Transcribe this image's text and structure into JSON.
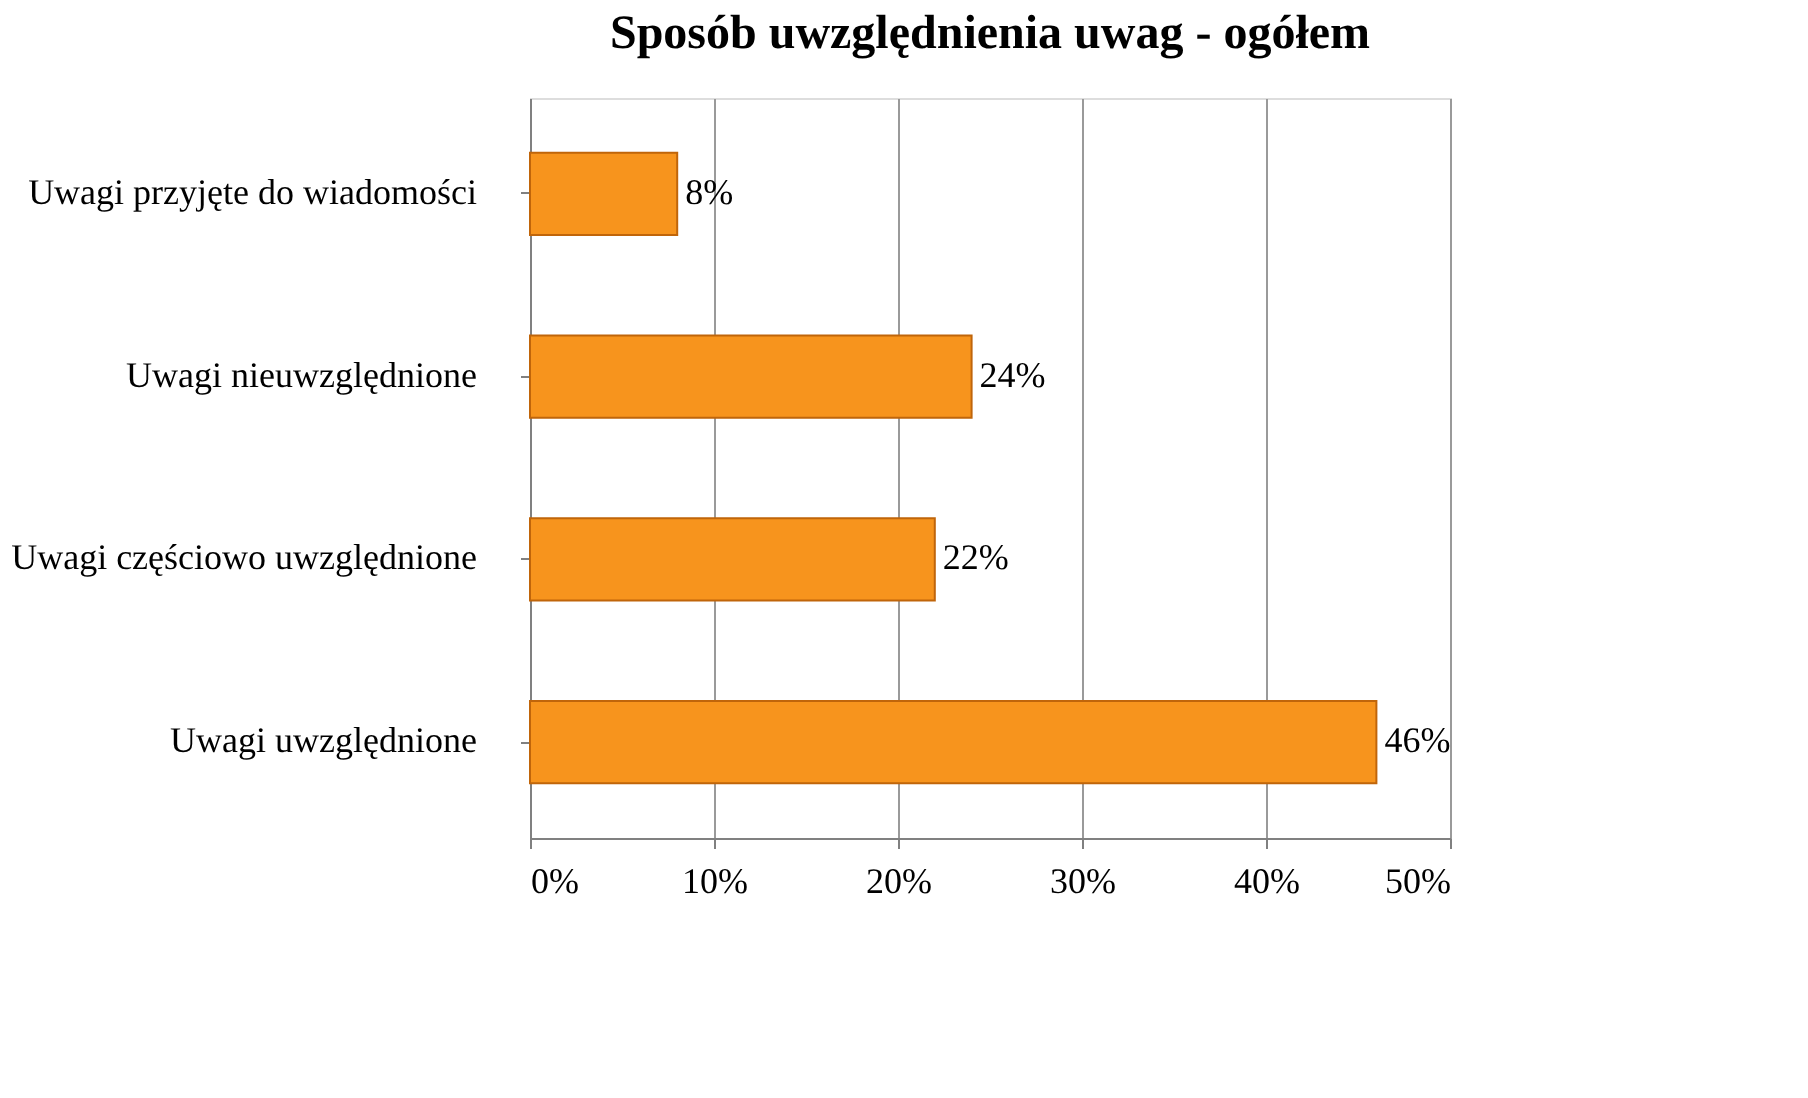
{
  "chart_data": {
    "type": "bar",
    "orientation": "horizontal",
    "title": "Sposób uwzględnienia uwag - ogółem",
    "categories": [
      "Uwagi przyjęte do wiadomości",
      "Uwagi nieuwzględnione",
      "Uwagi częściowo uwzględnione",
      "Uwagi uwzględnione"
    ],
    "values": [
      8,
      24,
      22,
      46
    ],
    "value_labels": [
      "8%",
      "24%",
      "22%",
      "46%"
    ],
    "color": "#f7941d",
    "xlim": [
      0,
      50
    ],
    "xticks": [
      {
        "value": 0,
        "label": "0%"
      },
      {
        "value": 10,
        "label": "10%"
      },
      {
        "value": 20,
        "label": "20%"
      },
      {
        "value": 30,
        "label": "30%"
      },
      {
        "value": 40,
        "label": "40%"
      },
      {
        "value": 50,
        "label": "50%"
      }
    ],
    "grid": "x"
  }
}
